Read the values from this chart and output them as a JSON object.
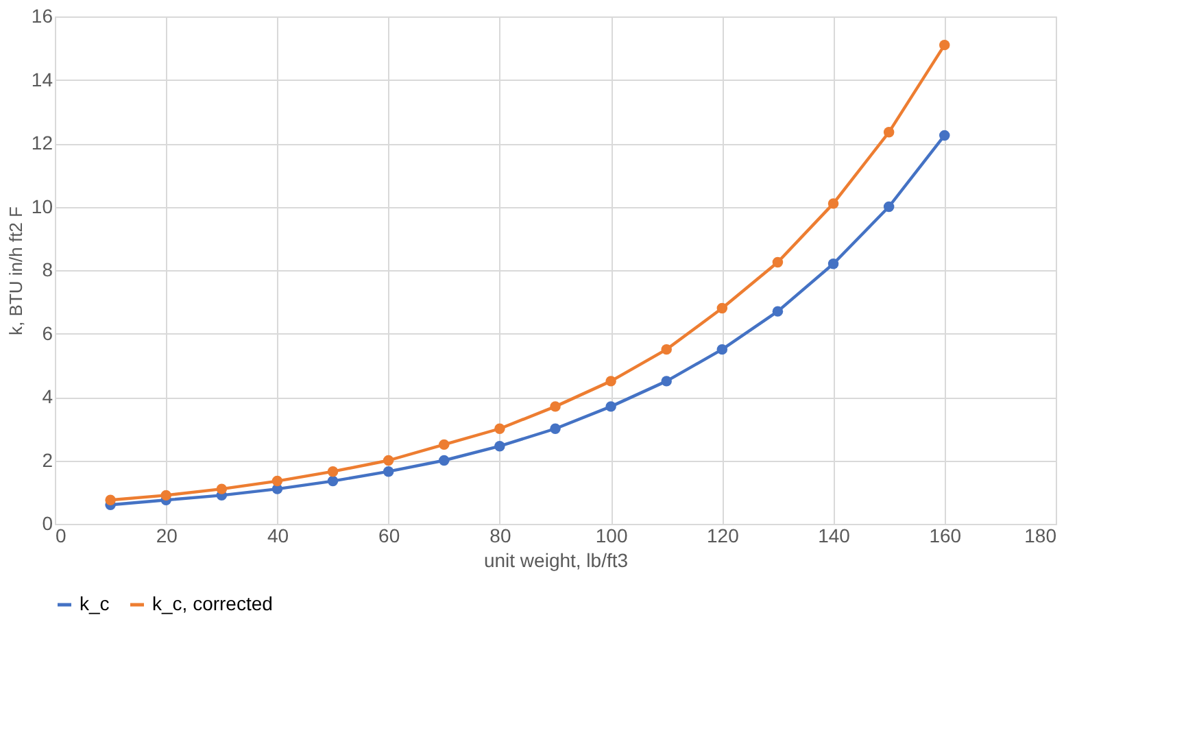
{
  "chart_data": {
    "type": "line",
    "xlabel": "unit weight, lb/ft3",
    "ylabel": "k, BTU in/h ft2 F",
    "x": [
      10,
      20,
      30,
      40,
      50,
      60,
      70,
      80,
      90,
      100,
      110,
      120,
      130,
      140,
      150,
      160
    ],
    "series": [
      {
        "name": "k_c",
        "color": "#4472c4",
        "values": [
          0.6,
          0.75,
          0.9,
          1.1,
          1.35,
          1.65,
          2.0,
          2.45,
          3.0,
          3.7,
          4.5,
          5.5,
          6.7,
          8.2,
          10.0,
          12.25
        ]
      },
      {
        "name": "k_c, corrected",
        "color": "#ed7d31",
        "values": [
          0.75,
          0.9,
          1.1,
          1.35,
          1.65,
          2.0,
          2.5,
          3.0,
          3.7,
          4.5,
          5.5,
          6.8,
          8.25,
          10.1,
          12.35,
          15.1
        ]
      }
    ],
    "xlim": [
      0,
      180
    ],
    "xticks": [
      0,
      20,
      40,
      60,
      80,
      100,
      120,
      140,
      160,
      180
    ],
    "ylim": [
      0,
      16
    ],
    "yticks": [
      0,
      2,
      4,
      6,
      8,
      10,
      12,
      14,
      16
    ],
    "grid": true,
    "legend": "bottom",
    "marker": "circle",
    "line_style": "solid"
  }
}
